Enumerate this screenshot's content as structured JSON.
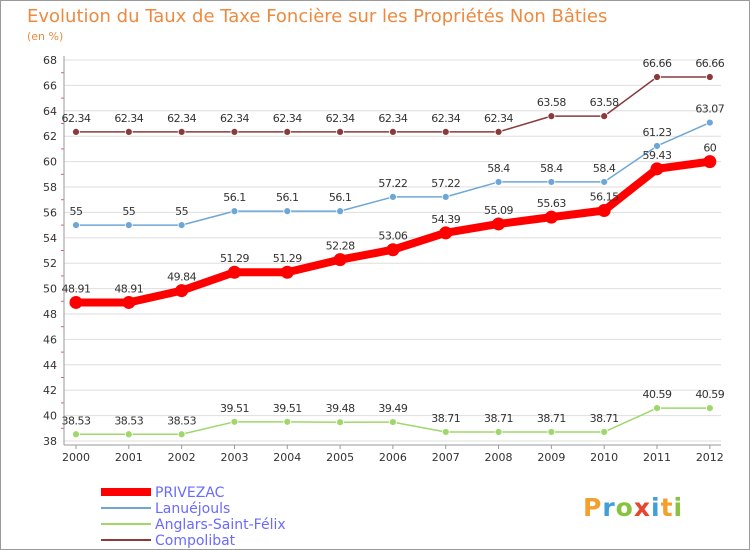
{
  "chart_data": {
    "type": "line",
    "title": "Evolution du Taux de Taxe Foncière sur les Propriétés Non Bâties",
    "subtitle": "(en %)",
    "x": [
      "2000",
      "2001",
      "2002",
      "2003",
      "2004",
      "2005",
      "2006",
      "2007",
      "2008",
      "2009",
      "2010",
      "2011",
      "2012"
    ],
    "ylim": [
      38,
      68
    ],
    "yticks": [
      "38",
      "40",
      "42",
      "44",
      "46",
      "48",
      "50",
      "52",
      "54",
      "56",
      "58",
      "60",
      "62",
      "64",
      "66",
      "68"
    ],
    "grid": true,
    "legend_position": "bottom-left",
    "series": [
      {
        "name": "PRIVEZAC",
        "color": "#ff0000",
        "values": [
          48.91,
          48.91,
          49.84,
          51.29,
          51.29,
          52.28,
          53.06,
          54.39,
          55.09,
          55.63,
          56.15,
          59.43,
          60
        ],
        "labels": [
          "48.91",
          "48.91",
          "49.84",
          "51.29",
          "51.29",
          "52.28",
          "53.06",
          "54.39",
          "55.09",
          "55.63",
          "56.15",
          "59.43",
          "60"
        ]
      },
      {
        "name": "Lanuéjouls",
        "color": "#6ea6d6",
        "values": [
          55,
          55,
          55,
          56.1,
          56.1,
          56.1,
          57.22,
          57.22,
          58.4,
          58.4,
          58.4,
          61.23,
          63.07
        ],
        "labels": [
          "55",
          "55",
          "55",
          "56.1",
          "56.1",
          "56.1",
          "57.22",
          "57.22",
          "58.4",
          "58.4",
          "58.4",
          "61.23",
          "63.07"
        ]
      },
      {
        "name": "Anglars-Saint-Félix",
        "color": "#9ed86a",
        "values": [
          38.53,
          38.53,
          38.53,
          39.51,
          39.51,
          39.48,
          39.49,
          38.71,
          38.71,
          38.71,
          38.71,
          40.59,
          40.59
        ],
        "labels": [
          "38.53",
          "38.53",
          "38.53",
          "39.51",
          "39.51",
          "39.48",
          "39.49",
          "38.71",
          "38.71",
          "38.71",
          "38.71",
          "40.59",
          "40.59"
        ]
      },
      {
        "name": "Compolibat",
        "color": "#8a3a3a",
        "values": [
          62.34,
          62.34,
          62.34,
          62.34,
          62.34,
          62.34,
          62.34,
          62.34,
          62.34,
          63.58,
          63.58,
          66.66,
          66.66
        ],
        "labels": [
          "62.34",
          "62.34",
          "62.34",
          "62.34",
          "62.34",
          "62.34",
          "62.34",
          "62.34",
          "62.34",
          "63.58",
          "63.58",
          "66.66",
          "66.66"
        ]
      }
    ]
  },
  "logo": {
    "text": "Proxiti"
  }
}
